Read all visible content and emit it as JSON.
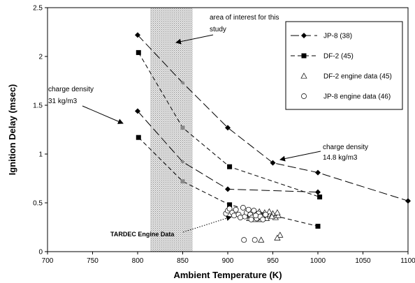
{
  "chart_data": {
    "type": "scatter",
    "xlabel": "Ambient Temperature (K)",
    "ylabel": "Ignition Delay (msec)",
    "xlim": [
      700,
      1100
    ],
    "ylim": [
      0,
      2.5
    ],
    "xticks": [
      "700",
      "750",
      "800",
      "850",
      "900",
      "950",
      "1000",
      "1050",
      "1100"
    ],
    "yticks": [
      "0",
      "0.5",
      "1",
      "1.5",
      "2",
      "2.5"
    ],
    "grid": false,
    "legend_position": "top-right",
    "shaded_region": {
      "x_range": [
        814,
        861
      ],
      "label": "area of interest for this study"
    },
    "series": [
      {
        "name": "JP-8  (38)",
        "marker": "diamond",
        "line": "long-dash",
        "curves": [
          [
            [
              800,
              2.22
            ],
            [
              850,
              1.73
            ],
            [
              900,
              1.27
            ],
            [
              950,
              0.91
            ],
            [
              1000,
              0.81
            ],
            [
              1100,
              0.52
            ]
          ],
          [
            [
              800,
              1.44
            ],
            [
              850,
              0.92
            ],
            [
              900,
              0.64
            ],
            [
              1000,
              0.61
            ]
          ]
        ]
      },
      {
        "name": "DF-2  (45)",
        "marker": "square",
        "line": "dash",
        "curves": [
          [
            [
              801,
              2.04
            ],
            [
              850,
              1.27
            ],
            [
              902,
              0.87
            ],
            [
              1002,
              0.56
            ]
          ],
          [
            [
              801,
              1.17
            ],
            [
              850,
              0.72
            ],
            [
              902,
              0.48
            ],
            [
              1000,
              0.26
            ]
          ]
        ]
      },
      {
        "name": "DF-2 engine data (45)",
        "marker": "triangle",
        "points": [
          [
            920,
            0.37
          ],
          [
            923,
            0.4
          ],
          [
            926,
            0.36
          ],
          [
            929,
            0.39
          ],
          [
            932,
            0.35
          ],
          [
            935,
            0.41
          ],
          [
            938,
            0.37
          ],
          [
            941,
            0.4
          ],
          [
            944,
            0.36
          ],
          [
            947,
            0.38
          ],
          [
            950,
            0.39
          ],
          [
            953,
            0.35
          ],
          [
            956,
            0.37
          ],
          [
            924,
            0.34
          ],
          [
            930,
            0.33
          ],
          [
            937,
            0.33
          ],
          [
            943,
            0.34
          ],
          [
            949,
            0.36
          ],
          [
            955,
            0.4
          ],
          [
            958,
            0.17
          ],
          [
            955,
            0.14
          ],
          [
            937,
            0.12
          ],
          [
            925,
            0.38
          ],
          [
            934,
            0.38
          ],
          [
            946,
            0.41
          ]
        ]
      },
      {
        "name": "JP-8 engine data (46)",
        "marker": "circle",
        "points": [
          [
            898,
            0.39
          ],
          [
            900,
            0.42
          ],
          [
            902,
            0.44
          ],
          [
            905,
            0.4
          ],
          [
            907,
            0.37
          ],
          [
            909,
            0.43
          ],
          [
            912,
            0.38
          ],
          [
            914,
            0.35
          ],
          [
            917,
            0.45
          ],
          [
            919,
            0.36
          ],
          [
            921,
            0.4
          ],
          [
            923,
            0.43
          ],
          [
            925,
            0.38
          ],
          [
            927,
            0.35
          ],
          [
            929,
            0.42
          ],
          [
            932,
            0.34
          ],
          [
            934,
            0.39
          ],
          [
            936,
            0.36
          ],
          [
            939,
            0.33
          ],
          [
            942,
            0.38
          ],
          [
            926,
            0.33
          ],
          [
            931,
            0.37
          ],
          [
            918,
            0.12
          ],
          [
            930,
            0.12
          ]
        ]
      }
    ],
    "annotations": [
      {
        "text": [
          "area of interest for this",
          "study"
        ]
      },
      {
        "text": [
          "charge density",
          "31 kg/m3"
        ]
      },
      {
        "text": [
          "charge density",
          "14.8 kg/m3"
        ]
      },
      {
        "text": [
          "TARDEC Engine Data"
        ]
      }
    ]
  }
}
